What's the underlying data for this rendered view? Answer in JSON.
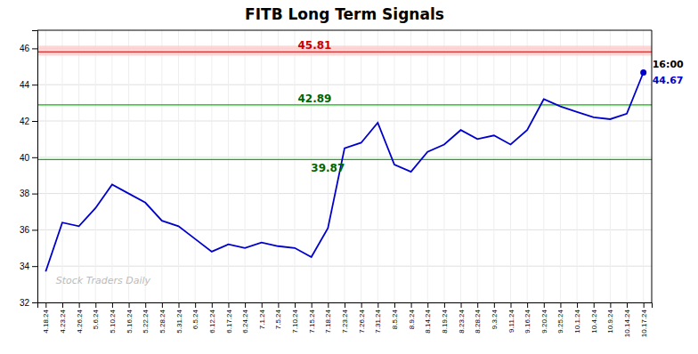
{
  "chart_data": {
    "type": "line",
    "title": "FITB Long Term Signals",
    "categories": [
      "4.18.24",
      "4.23.24",
      "4.26.24",
      "5.6.24",
      "5.10.24",
      "5.16.24",
      "5.22.24",
      "5.28.24",
      "5.31.24",
      "6.5.24",
      "6.12.24",
      "6.17.24",
      "6.24.24",
      "7.1.24",
      "7.5.24",
      "7.10.24",
      "7.15.24",
      "7.18.24",
      "7.23.24",
      "7.26.24",
      "7.31.24",
      "8.5.24",
      "8.9.24",
      "8.14.24",
      "8.19.24",
      "8.23.24",
      "8.28.24",
      "9.3.24",
      "9.11.24",
      "9.16.24",
      "9.20.24",
      "9.25.24",
      "10.1.24",
      "10.4.24",
      "10.9.24",
      "10.14.24",
      "10.17.24"
    ],
    "values": [
      33.7,
      36.4,
      36.2,
      37.2,
      38.5,
      38.0,
      37.5,
      36.5,
      36.2,
      35.5,
      34.8,
      35.2,
      35.0,
      35.3,
      35.1,
      35.0,
      34.5,
      36.1,
      40.5,
      40.8,
      41.9,
      39.6,
      39.2,
      40.3,
      40.7,
      41.5,
      41.0,
      41.2,
      40.7,
      41.5,
      43.2,
      42.8,
      42.5,
      42.2,
      42.1,
      42.4,
      44.67
    ],
    "color": "#0000cc",
    "ylim": [
      32,
      47
    ],
    "yticks": [
      32,
      34,
      36,
      38,
      40,
      42,
      44,
      46
    ],
    "grid": true,
    "band": {
      "from": 45.6,
      "to": 46.15,
      "color": "#ffcccc"
    },
    "hlines": [
      {
        "value": 45.81,
        "label": "45.81",
        "color": "#cc0000",
        "label_color": "#cc0000"
      },
      {
        "value": 42.89,
        "label": "42.89",
        "color": "#00bb00",
        "label_color": "#006600"
      },
      {
        "value": 39.87,
        "label": "39.87",
        "color": "#00bb00",
        "label_color": "#006600"
      }
    ],
    "last_point": {
      "value": 44.67,
      "label": "44.67",
      "time_label": "16:00"
    },
    "watermark": "Stock Traders Daily"
  }
}
